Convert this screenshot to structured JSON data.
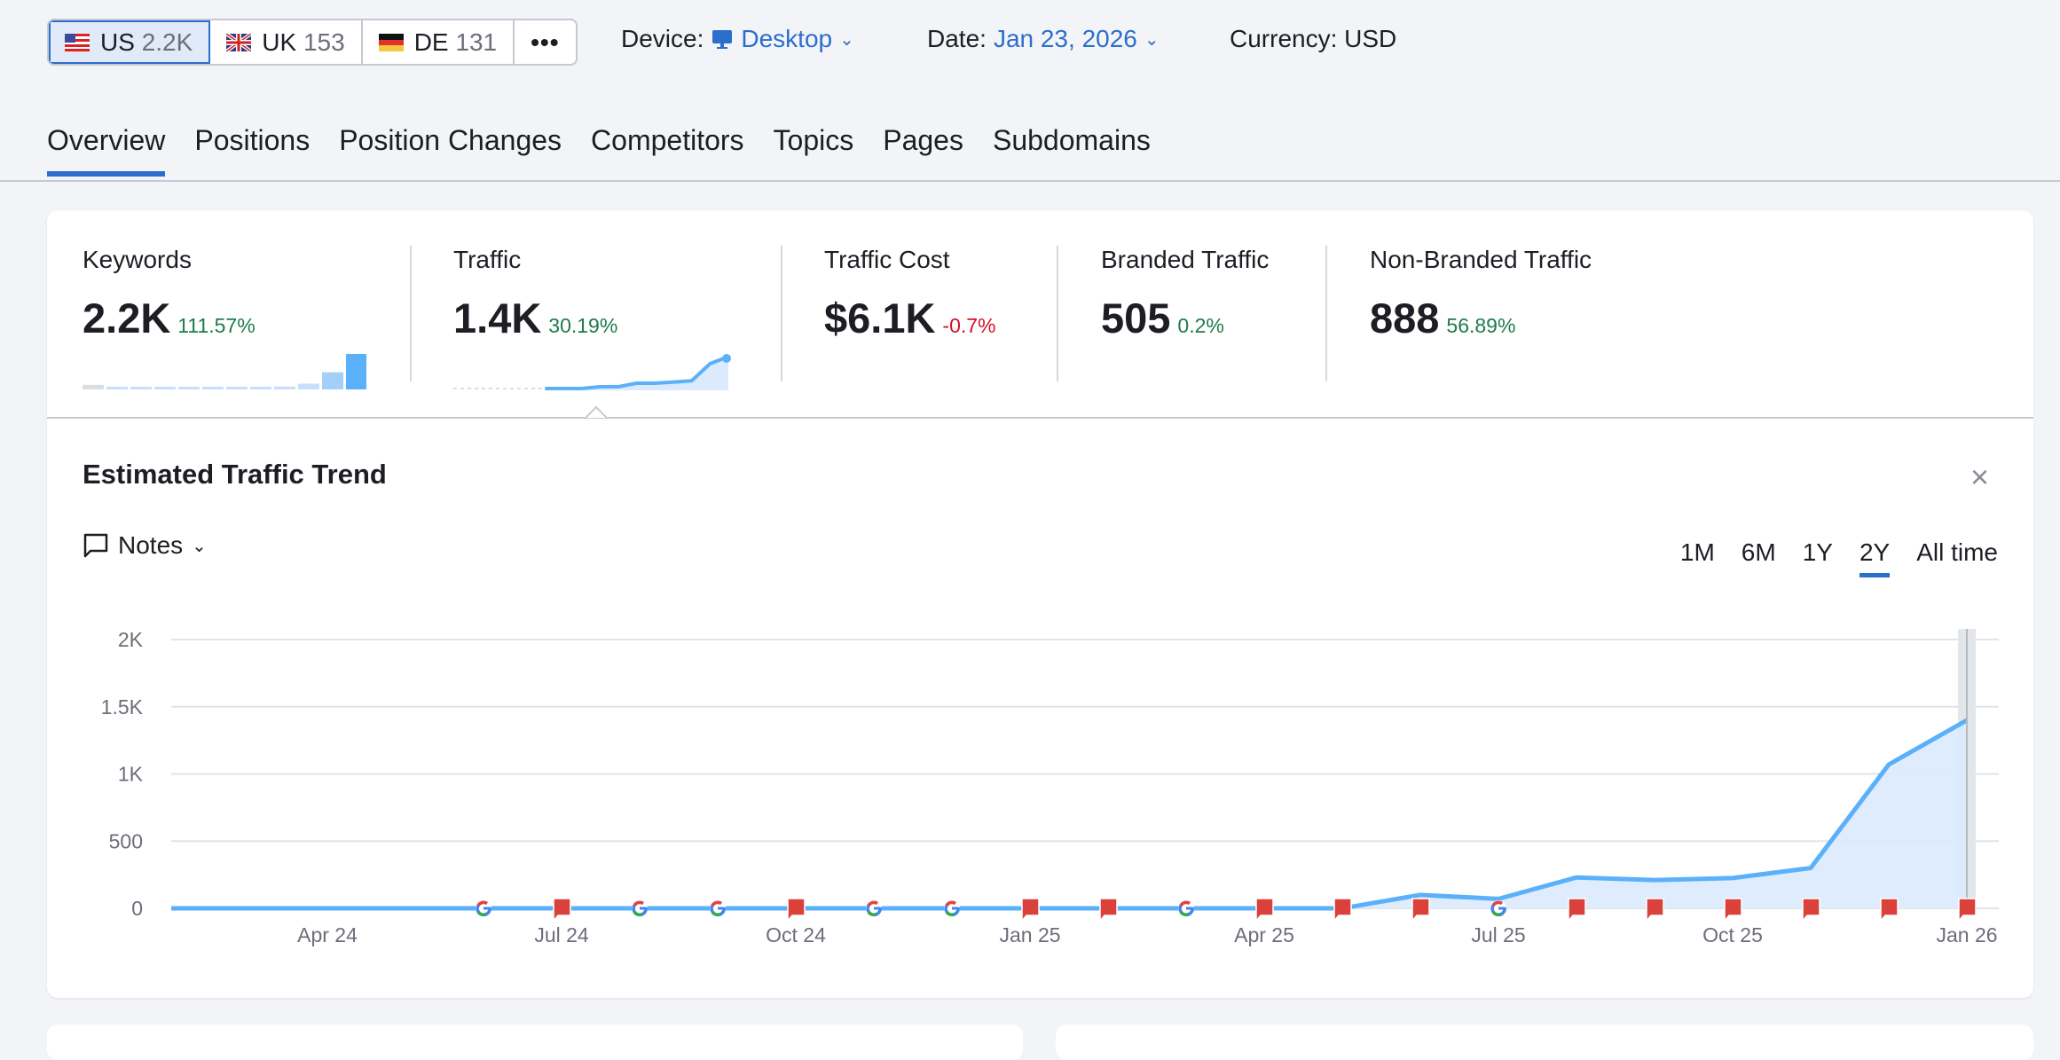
{
  "countries": [
    {
      "code": "US",
      "count": "2.2K",
      "active": true
    },
    {
      "code": "UK",
      "count": "153"
    },
    {
      "code": "DE",
      "count": "131"
    }
  ],
  "more_label": "•••",
  "device": {
    "label": "Device:",
    "value": "Desktop"
  },
  "date": {
    "label": "Date:",
    "value": "Jan 23, 2026"
  },
  "currency": "Currency: USD",
  "tabs": [
    "Overview",
    "Positions",
    "Position Changes",
    "Competitors",
    "Topics",
    "Pages",
    "Subdomains"
  ],
  "metrics": [
    {
      "label": "Keywords",
      "value": "2.2K",
      "change": "111.57%",
      "negative": false
    },
    {
      "label": "Traffic",
      "value": "1.4K",
      "change": "30.19%",
      "negative": false
    },
    {
      "label": "Traffic Cost",
      "value": "$6.1K",
      "change": "-0.7%",
      "negative": true
    },
    {
      "label": "Branded Traffic",
      "value": "505",
      "change": "0.2%",
      "negative": false
    },
    {
      "label": "Non-Branded Traffic",
      "value": "888",
      "change": "56.89%",
      "negative": false
    }
  ],
  "keywords_sparkline": [
    40,
    20,
    20,
    20,
    20,
    20,
    20,
    20,
    25,
    50,
    150,
    310
  ],
  "traffic_sparkline": [
    0,
    0,
    0,
    0,
    0,
    0,
    0,
    0,
    5,
    5,
    15,
    15,
    18,
    22,
    70,
    90
  ],
  "trend": {
    "title": "Estimated Traffic Trend",
    "close": "×",
    "notes": "Notes",
    "ranges": [
      "1M",
      "6M",
      "1Y",
      "2Y",
      "All time"
    ],
    "active_range": "2Y"
  },
  "chart_data": {
    "type": "area",
    "title": "Estimated Traffic Trend",
    "x": [
      "Feb 24",
      "Mar 24",
      "Apr 24",
      "May 24",
      "Jun 24",
      "Jul 24",
      "Aug 24",
      "Sep 24",
      "Oct 24",
      "Nov 24",
      "Dec 24",
      "Jan 25",
      "Feb 25",
      "Mar 25",
      "Apr 25",
      "May 25",
      "Jun 25",
      "Jul 25",
      "Aug 25",
      "Sep 25",
      "Oct 25",
      "Nov 25",
      "Dec 25",
      "Jan 26"
    ],
    "values": [
      0,
      0,
      0,
      0,
      0,
      0,
      0,
      0,
      0,
      0,
      0,
      0,
      0,
      0,
      0,
      0,
      100,
      70,
      230,
      210,
      225,
      300,
      1070,
      1400
    ],
    "ylim": [
      0,
      2000
    ],
    "yticks": [
      {
        "v": 0,
        "label": "0"
      },
      {
        "v": 500,
        "label": "500"
      },
      {
        "v": 1000,
        "label": "1K"
      },
      {
        "v": 1500,
        "label": "1.5K"
      },
      {
        "v": 2000,
        "label": "2K"
      }
    ],
    "xticks": [
      {
        "i": 2,
        "label": "Apr 24"
      },
      {
        "i": 5,
        "label": "Jul 24"
      },
      {
        "i": 8,
        "label": "Oct 24"
      },
      {
        "i": 11,
        "label": "Jan 25"
      },
      {
        "i": 14,
        "label": "Apr 25"
      },
      {
        "i": 17,
        "label": "Jul 25"
      },
      {
        "i": 20,
        "label": "Oct 25"
      },
      {
        "i": 23,
        "label": "Jan 26"
      }
    ],
    "markers": {
      "google_update": [
        4,
        6,
        7,
        9,
        10,
        13,
        17
      ],
      "note": [
        5,
        8,
        11,
        12,
        14,
        15,
        16,
        18,
        19,
        20,
        21,
        22,
        23
      ]
    },
    "line_color": "#5bb1f9",
    "fill_color": "#dbeafd",
    "grid": true
  }
}
